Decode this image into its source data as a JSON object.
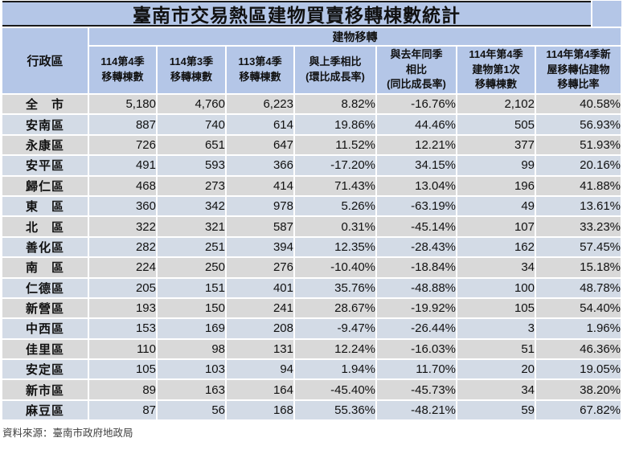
{
  "chart_data": {
    "type": "table",
    "title": "臺南市交易熱區建物買賣移轉棟數統計",
    "row_header": "行政區",
    "group_header": "建物移轉",
    "columns": [
      "114第4季\n移轉棟數",
      "114第3季\n移轉棟數",
      "113第4季\n移轉棟數",
      "與上季相比\n(環比成長率)",
      "與去年同季\n相比\n(同比成長率)",
      "114年第4季\n建物第1次\n移轉棟數",
      "114年第4季新\n屋移轉佔建物\n移轉比率"
    ],
    "rows": [
      {
        "district": "全　市",
        "values": [
          "5,180",
          "4,760",
          "6,223",
          "8.82%",
          "-16.76%",
          "2,102",
          "40.58%"
        ]
      },
      {
        "district": "安南區",
        "values": [
          "887",
          "740",
          "614",
          "19.86%",
          "44.46%",
          "505",
          "56.93%"
        ]
      },
      {
        "district": "永康區",
        "values": [
          "726",
          "651",
          "647",
          "11.52%",
          "12.21%",
          "377",
          "51.93%"
        ]
      },
      {
        "district": "安平區",
        "values": [
          "491",
          "593",
          "366",
          "-17.20%",
          "34.15%",
          "99",
          "20.16%"
        ]
      },
      {
        "district": "歸仁區",
        "values": [
          "468",
          "273",
          "414",
          "71.43%",
          "13.04%",
          "196",
          "41.88%"
        ]
      },
      {
        "district": "東　區",
        "values": [
          "360",
          "342",
          "978",
          "5.26%",
          "-63.19%",
          "49",
          "13.61%"
        ]
      },
      {
        "district": "北　區",
        "values": [
          "322",
          "321",
          "587",
          "0.31%",
          "-45.14%",
          "107",
          "33.23%"
        ]
      },
      {
        "district": "善化區",
        "values": [
          "282",
          "251",
          "394",
          "12.35%",
          "-28.43%",
          "162",
          "57.45%"
        ]
      },
      {
        "district": "南　區",
        "values": [
          "224",
          "250",
          "276",
          "-10.40%",
          "-18.84%",
          "34",
          "15.18%"
        ]
      },
      {
        "district": "仁德區",
        "values": [
          "205",
          "151",
          "401",
          "35.76%",
          "-48.88%",
          "100",
          "48.78%"
        ]
      },
      {
        "district": "新營區",
        "values": [
          "193",
          "150",
          "241",
          "28.67%",
          "-19.92%",
          "105",
          "54.40%"
        ]
      },
      {
        "district": "中西區",
        "values": [
          "153",
          "169",
          "208",
          "-9.47%",
          "-26.44%",
          "3",
          "1.96%"
        ]
      },
      {
        "district": "佳里區",
        "values": [
          "110",
          "98",
          "131",
          "12.24%",
          "-16.03%",
          "51",
          "46.36%"
        ]
      },
      {
        "district": "安定區",
        "values": [
          "105",
          "103",
          "94",
          "1.94%",
          "11.70%",
          "20",
          "19.05%"
        ]
      },
      {
        "district": "新市區",
        "values": [
          "89",
          "163",
          "164",
          "-45.40%",
          "-45.73%",
          "34",
          "38.20%"
        ]
      },
      {
        "district": "麻豆區",
        "values": [
          "87",
          "56",
          "168",
          "55.36%",
          "-48.21%",
          "59",
          "67.82%"
        ]
      }
    ],
    "source": "資料來源：臺南市政府地政局",
    "layout": {
      "header_fill": "#b4c6e7",
      "row_fill_odd": "#d9d9d9",
      "row_fill_even": "#d3dbe6",
      "grid_gap_color": "#ffffff",
      "title_border_color": "#1a1a1a"
    }
  }
}
